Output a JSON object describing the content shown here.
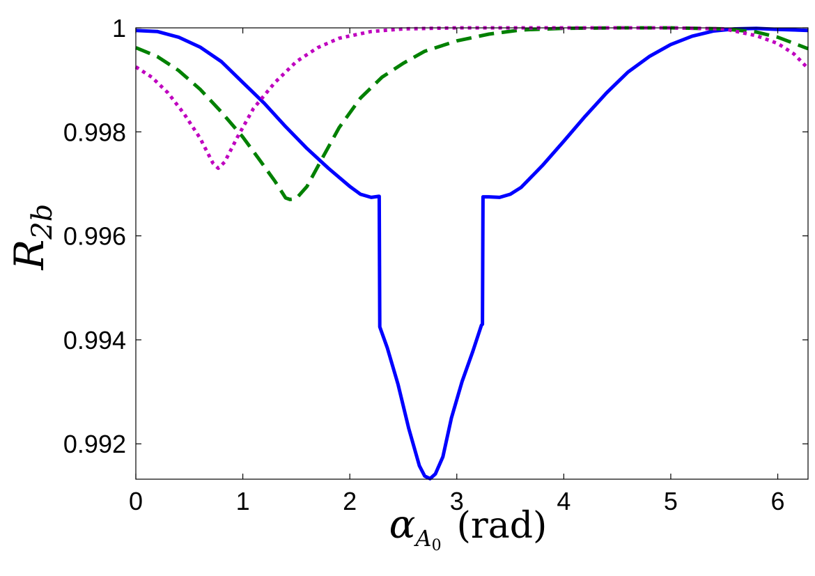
{
  "chart_data": {
    "type": "line",
    "title": "",
    "xlabel": {
      "symbol": "α",
      "subscript": "A",
      "subsubscript": "0",
      "unit": "(rad)"
    },
    "ylabel": {
      "symbol": "R",
      "subscript": "2b"
    },
    "xlim": [
      0,
      6.283
    ],
    "ylim": [
      0.99132,
      1.0
    ],
    "xticks": [
      0,
      1,
      2,
      3,
      4,
      5,
      6
    ],
    "xtick_labels": [
      "0",
      "1",
      "2",
      "3",
      "4",
      "5",
      "6"
    ],
    "yticks": [
      0.992,
      0.994,
      0.996,
      0.998,
      1.0
    ],
    "ytick_labels": [
      "0.992",
      "0.994",
      "0.996",
      "0.998",
      "1"
    ],
    "grid": false,
    "legend": "none",
    "series": [
      {
        "color": "#0000ff",
        "style": "solid",
        "points": [
          [
            0.0,
            0.99995
          ],
          [
            0.2,
            0.99993
          ],
          [
            0.4,
            0.99982
          ],
          [
            0.6,
            0.99963
          ],
          [
            0.8,
            0.99935
          ],
          [
            1.0,
            0.99895
          ],
          [
            1.2,
            0.99855
          ],
          [
            1.4,
            0.9981
          ],
          [
            1.6,
            0.99768
          ],
          [
            1.8,
            0.9973
          ],
          [
            2.0,
            0.99695
          ],
          [
            2.1,
            0.9968
          ],
          [
            2.2,
            0.99674
          ],
          [
            2.27,
            0.99676
          ],
          [
            2.275,
            0.99676
          ],
          [
            2.28,
            0.99425
          ],
          [
            2.35,
            0.99385
          ],
          [
            2.45,
            0.99315
          ],
          [
            2.55,
            0.9923
          ],
          [
            2.65,
            0.99158
          ],
          [
            2.7,
            0.99138
          ],
          [
            2.75,
            0.99133
          ],
          [
            2.8,
            0.99142
          ],
          [
            2.87,
            0.99175
          ],
          [
            2.95,
            0.9925
          ],
          [
            3.05,
            0.9932
          ],
          [
            3.15,
            0.99378
          ],
          [
            3.23,
            0.99428
          ],
          [
            3.24,
            0.9943
          ],
          [
            3.245,
            0.99675
          ],
          [
            3.3,
            0.99675
          ],
          [
            3.4,
            0.99674
          ],
          [
            3.5,
            0.9968
          ],
          [
            3.6,
            0.99693
          ],
          [
            3.8,
            0.99735
          ],
          [
            4.0,
            0.99782
          ],
          [
            4.2,
            0.9983
          ],
          [
            4.4,
            0.99875
          ],
          [
            4.6,
            0.99915
          ],
          [
            4.8,
            0.99945
          ],
          [
            5.0,
            0.99968
          ],
          [
            5.2,
            0.99984
          ],
          [
            5.4,
            0.99994
          ],
          [
            5.6,
            0.99998
          ],
          [
            5.8,
            0.99999
          ],
          [
            6.0,
            0.99997
          ],
          [
            6.283,
            0.99995
          ]
        ]
      },
      {
        "color": "#008000",
        "style": "dashed",
        "points": [
          [
            0.0,
            0.99962
          ],
          [
            0.2,
            0.99945
          ],
          [
            0.4,
            0.99918
          ],
          [
            0.6,
            0.99882
          ],
          [
            0.8,
            0.99838
          ],
          [
            1.0,
            0.9979
          ],
          [
            1.15,
            0.99748
          ],
          [
            1.3,
            0.99705
          ],
          [
            1.4,
            0.99673
          ],
          [
            1.44,
            0.9967
          ],
          [
            1.5,
            0.99672
          ],
          [
            1.6,
            0.99695
          ],
          [
            1.75,
            0.99752
          ],
          [
            1.9,
            0.99808
          ],
          [
            2.1,
            0.99865
          ],
          [
            2.3,
            0.99905
          ],
          [
            2.5,
            0.99932
          ],
          [
            2.7,
            0.99955
          ],
          [
            3.0,
            0.99975
          ],
          [
            3.3,
            0.99988
          ],
          [
            3.6,
            0.99996
          ],
          [
            4.0,
            0.99999
          ],
          [
            4.5,
            1.0
          ],
          [
            5.0,
            1.0
          ],
          [
            5.5,
            0.99998
          ],
          [
            5.8,
            0.99992
          ],
          [
            6.0,
            0.99982
          ],
          [
            6.283,
            0.9996
          ]
        ]
      },
      {
        "color": "#bf00bf",
        "style": "dotted",
        "points": [
          [
            0.0,
            0.99925
          ],
          [
            0.15,
            0.99905
          ],
          [
            0.3,
            0.99875
          ],
          [
            0.45,
            0.99835
          ],
          [
            0.6,
            0.99788
          ],
          [
            0.72,
            0.9974
          ],
          [
            0.77,
            0.9973
          ],
          [
            0.83,
            0.99742
          ],
          [
            0.95,
            0.9979
          ],
          [
            1.1,
            0.99845
          ],
          [
            1.3,
            0.99895
          ],
          [
            1.5,
            0.99935
          ],
          [
            1.7,
            0.99962
          ],
          [
            1.9,
            0.9998
          ],
          [
            2.2,
            0.99993
          ],
          [
            2.5,
            0.99998
          ],
          [
            3.0,
            1.0
          ],
          [
            4.0,
            1.0
          ],
          [
            5.0,
            1.0
          ],
          [
            5.5,
            0.99998
          ],
          [
            5.8,
            0.99985
          ],
          [
            6.0,
            0.9997
          ],
          [
            6.15,
            0.9995
          ],
          [
            6.283,
            0.99922
          ]
        ]
      }
    ]
  }
}
